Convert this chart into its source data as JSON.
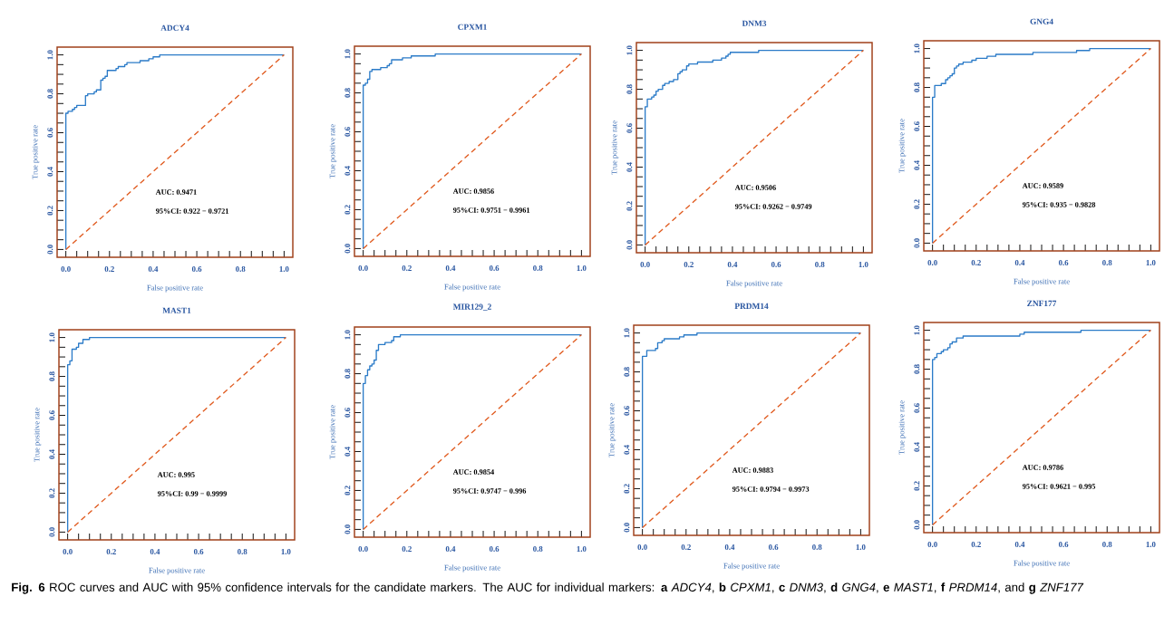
{
  "chart_data": [
    {
      "type": "step",
      "title": "ADCY4",
      "xlabel": "False positive rate",
      "ylabel": "True positive rate",
      "xlim": [
        -0.04,
        1.04
      ],
      "ylim": [
        -0.04,
        1.04
      ],
      "xticks": [
        {
          "value": 0,
          "label": "0.0"
        },
        {
          "value": 0.05,
          "label": null
        },
        {
          "value": 0.1,
          "label": null
        },
        {
          "value": 0.15,
          "label": null
        },
        {
          "value": 0.2,
          "label": "0.2"
        },
        {
          "value": 0.25,
          "label": null
        },
        {
          "value": 0.3,
          "label": null
        },
        {
          "value": 0.35,
          "label": null
        },
        {
          "value": 0.4,
          "label": "0.4"
        },
        {
          "value": 0.45,
          "label": null
        },
        {
          "value": 0.5,
          "label": null
        },
        {
          "value": 0.55,
          "label": null
        },
        {
          "value": 0.6,
          "label": "0.6"
        },
        {
          "value": 0.65,
          "label": null
        },
        {
          "value": 0.7,
          "label": null
        },
        {
          "value": 0.75,
          "label": null
        },
        {
          "value": 0.8,
          "label": "0.8"
        },
        {
          "value": 0.85,
          "label": null
        },
        {
          "value": 0.9,
          "label": null
        },
        {
          "value": 0.95,
          "label": null
        },
        {
          "value": 1,
          "label": "1.0"
        }
      ],
      "yticks": [
        {
          "value": 0,
          "label": "0.0"
        },
        {
          "value": 0.05,
          "label": null
        },
        {
          "value": 0.1,
          "label": null
        },
        {
          "value": 0.15,
          "label": null
        },
        {
          "value": 0.2,
          "label": "0.2"
        },
        {
          "value": 0.25,
          "label": null
        },
        {
          "value": 0.3,
          "label": null
        },
        {
          "value": 0.35,
          "label": null
        },
        {
          "value": 0.4,
          "label": "0.4"
        },
        {
          "value": 0.45,
          "label": null
        },
        {
          "value": 0.5,
          "label": null
        },
        {
          "value": 0.55,
          "label": null
        },
        {
          "value": 0.6,
          "label": "0.6"
        },
        {
          "value": 0.65,
          "label": null
        },
        {
          "value": 0.7,
          "label": null
        },
        {
          "value": 0.75,
          "label": null
        },
        {
          "value": 0.8,
          "label": "0.8"
        },
        {
          "value": 0.85,
          "label": null
        },
        {
          "value": 0.9,
          "label": null
        },
        {
          "value": 0.95,
          "label": null
        },
        {
          "value": 1,
          "label": "1.0"
        }
      ],
      "annotations": [
        "AUC: 0.9471",
        "95%CI: 0.922 − 0.9721"
      ],
      "series": [
        {
          "type": "step",
          "color": "#2b7bc8",
          "x": [
            0,
            0,
            0.01,
            0.03,
            0.04,
            0.05,
            0.09,
            0.1,
            0.13,
            0.14,
            0.16,
            0.17,
            0.18,
            0.19,
            0.23,
            0.24,
            0.27,
            0.28,
            0.34,
            0.38,
            0.4,
            0.43,
            1
          ],
          "values": [
            0,
            0.7,
            0.71,
            0.72,
            0.73,
            0.74,
            0.79,
            0.8,
            0.81,
            0.82,
            0.87,
            0.88,
            0.89,
            0.92,
            0.93,
            0.94,
            0.95,
            0.96,
            0.97,
            0.98,
            0.99,
            1,
            1
          ]
        },
        {
          "type": "line",
          "color": "#e05a1e",
          "line_style": "dashed",
          "x": [
            0,
            1
          ],
          "values": [
            0,
            1
          ]
        }
      ]
    },
    {
      "type": "step",
      "title": "CPXM1",
      "xlabel": "False positive rate",
      "ylabel": "True positive rate",
      "xlim": [
        -0.04,
        1.04
      ],
      "ylim": [
        -0.04,
        1.04
      ],
      "xticks": [
        {
          "value": 0,
          "label": "0.0"
        },
        {
          "value": 0.05,
          "label": null
        },
        {
          "value": 0.1,
          "label": null
        },
        {
          "value": 0.15,
          "label": null
        },
        {
          "value": 0.2,
          "label": "0.2"
        },
        {
          "value": 0.25,
          "label": null
        },
        {
          "value": 0.3,
          "label": null
        },
        {
          "value": 0.35,
          "label": null
        },
        {
          "value": 0.4,
          "label": "0.4"
        },
        {
          "value": 0.45,
          "label": null
        },
        {
          "value": 0.5,
          "label": null
        },
        {
          "value": 0.55,
          "label": null
        },
        {
          "value": 0.6,
          "label": "0.6"
        },
        {
          "value": 0.65,
          "label": null
        },
        {
          "value": 0.7,
          "label": null
        },
        {
          "value": 0.75,
          "label": null
        },
        {
          "value": 0.8,
          "label": "0.8"
        },
        {
          "value": 0.85,
          "label": null
        },
        {
          "value": 0.9,
          "label": null
        },
        {
          "value": 0.95,
          "label": null
        },
        {
          "value": 1,
          "label": "1.0"
        }
      ],
      "yticks": [
        {
          "value": 0,
          "label": "0.0"
        },
        {
          "value": 0.05,
          "label": null
        },
        {
          "value": 0.1,
          "label": null
        },
        {
          "value": 0.15,
          "label": null
        },
        {
          "value": 0.2,
          "label": "0.2"
        },
        {
          "value": 0.25,
          "label": null
        },
        {
          "value": 0.3,
          "label": null
        },
        {
          "value": 0.35,
          "label": null
        },
        {
          "value": 0.4,
          "label": "0.4"
        },
        {
          "value": 0.45,
          "label": null
        },
        {
          "value": 0.5,
          "label": null
        },
        {
          "value": 0.55,
          "label": null
        },
        {
          "value": 0.6,
          "label": "0.6"
        },
        {
          "value": 0.65,
          "label": null
        },
        {
          "value": 0.7,
          "label": null
        },
        {
          "value": 0.75,
          "label": null
        },
        {
          "value": 0.8,
          "label": "0.8"
        },
        {
          "value": 0.85,
          "label": null
        },
        {
          "value": 0.9,
          "label": null
        },
        {
          "value": 0.95,
          "label": null
        },
        {
          "value": 1,
          "label": "1.0"
        }
      ],
      "annotations": [
        "AUC: 0.9856",
        "95%CI: 0.9751 − 0.9961"
      ],
      "series": [
        {
          "type": "step",
          "color": "#2b7bc8",
          "x": [
            0,
            0,
            0.01,
            0.02,
            0.03,
            0.04,
            0.08,
            0.11,
            0.12,
            0.13,
            0.18,
            0.22,
            0.33,
            1
          ],
          "values": [
            0,
            0.84,
            0.85,
            0.87,
            0.91,
            0.92,
            0.93,
            0.94,
            0.95,
            0.97,
            0.98,
            0.99,
            1,
            1
          ]
        },
        {
          "type": "line",
          "color": "#e05a1e",
          "line_style": "dashed",
          "x": [
            0,
            1
          ],
          "values": [
            0,
            1
          ]
        }
      ]
    },
    {
      "type": "step",
      "title": "DNM3",
      "xlabel": "False positive rate",
      "ylabel": "True positive rate",
      "xlim": [
        -0.04,
        1.04
      ],
      "ylim": [
        -0.04,
        1.04
      ],
      "xticks": [
        {
          "value": 0,
          "label": "0.0"
        },
        {
          "value": 0.05,
          "label": null
        },
        {
          "value": 0.1,
          "label": null
        },
        {
          "value": 0.15,
          "label": null
        },
        {
          "value": 0.2,
          "label": "0.2"
        },
        {
          "value": 0.25,
          "label": null
        },
        {
          "value": 0.3,
          "label": null
        },
        {
          "value": 0.35,
          "label": null
        },
        {
          "value": 0.4,
          "label": "0.4"
        },
        {
          "value": 0.45,
          "label": null
        },
        {
          "value": 0.5,
          "label": null
        },
        {
          "value": 0.55,
          "label": null
        },
        {
          "value": 0.6,
          "label": "0.6"
        },
        {
          "value": 0.65,
          "label": null
        },
        {
          "value": 0.7,
          "label": null
        },
        {
          "value": 0.75,
          "label": null
        },
        {
          "value": 0.8,
          "label": "0.8"
        },
        {
          "value": 0.85,
          "label": null
        },
        {
          "value": 0.9,
          "label": null
        },
        {
          "value": 0.95,
          "label": null
        },
        {
          "value": 1,
          "label": "1.0"
        }
      ],
      "yticks": [
        {
          "value": 0,
          "label": "0.0"
        },
        {
          "value": 0.05,
          "label": null
        },
        {
          "value": 0.1,
          "label": null
        },
        {
          "value": 0.15,
          "label": null
        },
        {
          "value": 0.2,
          "label": "0.2"
        },
        {
          "value": 0.25,
          "label": null
        },
        {
          "value": 0.3,
          "label": null
        },
        {
          "value": 0.35,
          "label": null
        },
        {
          "value": 0.4,
          "label": "0.4"
        },
        {
          "value": 0.45,
          "label": null
        },
        {
          "value": 0.5,
          "label": null
        },
        {
          "value": 0.55,
          "label": null
        },
        {
          "value": 0.6,
          "label": "0.6"
        },
        {
          "value": 0.65,
          "label": null
        },
        {
          "value": 0.7,
          "label": null
        },
        {
          "value": 0.75,
          "label": null
        },
        {
          "value": 0.8,
          "label": "0.8"
        },
        {
          "value": 0.85,
          "label": null
        },
        {
          "value": 0.9,
          "label": null
        },
        {
          "value": 0.95,
          "label": null
        },
        {
          "value": 1,
          "label": "1.0"
        }
      ],
      "annotations": [
        "AUC: 0.9506",
        "95%CI: 0.9262 − 0.9749"
      ],
      "series": [
        {
          "type": "step",
          "color": "#2b7bc8",
          "x": [
            0,
            0,
            0.01,
            0.03,
            0.04,
            0.05,
            0.06,
            0.08,
            0.09,
            0.11,
            0.13,
            0.15,
            0.16,
            0.17,
            0.19,
            0.2,
            0.24,
            0.31,
            0.35,
            0.37,
            0.38,
            0.39,
            0.52,
            1
          ],
          "values": [
            0,
            0.71,
            0.75,
            0.76,
            0.77,
            0.79,
            0.8,
            0.82,
            0.83,
            0.84,
            0.85,
            0.88,
            0.89,
            0.9,
            0.92,
            0.93,
            0.94,
            0.95,
            0.96,
            0.97,
            0.98,
            0.99,
            1,
            1
          ]
        },
        {
          "type": "line",
          "color": "#e05a1e",
          "line_style": "dashed",
          "x": [
            0,
            1
          ],
          "values": [
            0,
            1
          ]
        }
      ]
    },
    {
      "type": "step",
      "title": "GNG4",
      "xlabel": "False positive rate",
      "ylabel": "True positive rate",
      "xlim": [
        -0.04,
        1.04
      ],
      "ylim": [
        -0.04,
        1.04
      ],
      "xticks": [
        {
          "value": 0,
          "label": "0.0"
        },
        {
          "value": 0.05,
          "label": null
        },
        {
          "value": 0.1,
          "label": null
        },
        {
          "value": 0.15,
          "label": null
        },
        {
          "value": 0.2,
          "label": "0.2"
        },
        {
          "value": 0.25,
          "label": null
        },
        {
          "value": 0.3,
          "label": null
        },
        {
          "value": 0.35,
          "label": null
        },
        {
          "value": 0.4,
          "label": "0.4"
        },
        {
          "value": 0.45,
          "label": null
        },
        {
          "value": 0.5,
          "label": null
        },
        {
          "value": 0.55,
          "label": null
        },
        {
          "value": 0.6,
          "label": "0.6"
        },
        {
          "value": 0.65,
          "label": null
        },
        {
          "value": 0.7,
          "label": null
        },
        {
          "value": 0.75,
          "label": null
        },
        {
          "value": 0.8,
          "label": "0.8"
        },
        {
          "value": 0.85,
          "label": null
        },
        {
          "value": 0.9,
          "label": null
        },
        {
          "value": 0.95,
          "label": null
        },
        {
          "value": 1,
          "label": "1.0"
        }
      ],
      "yticks": [
        {
          "value": 0,
          "label": "0.0"
        },
        {
          "value": 0.05,
          "label": null
        },
        {
          "value": 0.1,
          "label": null
        },
        {
          "value": 0.15,
          "label": null
        },
        {
          "value": 0.2,
          "label": "0.2"
        },
        {
          "value": 0.25,
          "label": null
        },
        {
          "value": 0.3,
          "label": null
        },
        {
          "value": 0.35,
          "label": null
        },
        {
          "value": 0.4,
          "label": "0.4"
        },
        {
          "value": 0.45,
          "label": null
        },
        {
          "value": 0.5,
          "label": null
        },
        {
          "value": 0.55,
          "label": null
        },
        {
          "value": 0.6,
          "label": "0.6"
        },
        {
          "value": 0.65,
          "label": null
        },
        {
          "value": 0.7,
          "label": null
        },
        {
          "value": 0.75,
          "label": null
        },
        {
          "value": 0.8,
          "label": "0.8"
        },
        {
          "value": 0.85,
          "label": null
        },
        {
          "value": 0.9,
          "label": null
        },
        {
          "value": 0.95,
          "label": null
        },
        {
          "value": 1,
          "label": "1.0"
        }
      ],
      "annotations": [
        "AUC: 0.9589",
        "95%CI: 0.935 − 0.9828"
      ],
      "series": [
        {
          "type": "step",
          "color": "#2b7bc8",
          "x": [
            0,
            0,
            0.01,
            0.04,
            0.06,
            0.07,
            0.08,
            0.09,
            0.1,
            0.11,
            0.12,
            0.14,
            0.18,
            0.2,
            0.25,
            0.29,
            0.46,
            0.66,
            0.72,
            1
          ],
          "values": [
            0,
            0.75,
            0.81,
            0.82,
            0.84,
            0.85,
            0.86,
            0.87,
            0.9,
            0.91,
            0.92,
            0.93,
            0.94,
            0.95,
            0.96,
            0.97,
            0.98,
            0.99,
            1,
            1
          ]
        },
        {
          "type": "line",
          "color": "#e05a1e",
          "line_style": "dashed",
          "x": [
            0,
            1
          ],
          "values": [
            0,
            1
          ]
        }
      ]
    },
    {
      "type": "step",
      "title": "MAST1",
      "xlabel": "False positive rate",
      "ylabel": "True positive rate",
      "xlim": [
        -0.04,
        1.04
      ],
      "ylim": [
        -0.04,
        1.04
      ],
      "xticks": [
        {
          "value": 0,
          "label": "0.0"
        },
        {
          "value": 0.05,
          "label": null
        },
        {
          "value": 0.1,
          "label": null
        },
        {
          "value": 0.15,
          "label": null
        },
        {
          "value": 0.2,
          "label": "0.2"
        },
        {
          "value": 0.25,
          "label": null
        },
        {
          "value": 0.3,
          "label": null
        },
        {
          "value": 0.35,
          "label": null
        },
        {
          "value": 0.4,
          "label": "0.4"
        },
        {
          "value": 0.45,
          "label": null
        },
        {
          "value": 0.5,
          "label": null
        },
        {
          "value": 0.55,
          "label": null
        },
        {
          "value": 0.6,
          "label": "0.6"
        },
        {
          "value": 0.65,
          "label": null
        },
        {
          "value": 0.7,
          "label": null
        },
        {
          "value": 0.75,
          "label": null
        },
        {
          "value": 0.8,
          "label": "0.8"
        },
        {
          "value": 0.85,
          "label": null
        },
        {
          "value": 0.9,
          "label": null
        },
        {
          "value": 0.95,
          "label": null
        },
        {
          "value": 1,
          "label": "1.0"
        }
      ],
      "yticks": [
        {
          "value": 0,
          "label": "0.0"
        },
        {
          "value": 0.05,
          "label": null
        },
        {
          "value": 0.1,
          "label": null
        },
        {
          "value": 0.15,
          "label": null
        },
        {
          "value": 0.2,
          "label": "0.2"
        },
        {
          "value": 0.25,
          "label": null
        },
        {
          "value": 0.3,
          "label": null
        },
        {
          "value": 0.35,
          "label": null
        },
        {
          "value": 0.4,
          "label": "0.4"
        },
        {
          "value": 0.45,
          "label": null
        },
        {
          "value": 0.5,
          "label": null
        },
        {
          "value": 0.55,
          "label": null
        },
        {
          "value": 0.6,
          "label": "0.6"
        },
        {
          "value": 0.65,
          "label": null
        },
        {
          "value": 0.7,
          "label": null
        },
        {
          "value": 0.75,
          "label": null
        },
        {
          "value": 0.8,
          "label": "0.8"
        },
        {
          "value": 0.85,
          "label": null
        },
        {
          "value": 0.9,
          "label": null
        },
        {
          "value": 0.95,
          "label": null
        },
        {
          "value": 1,
          "label": "1.0"
        }
      ],
      "annotations": [
        "AUC: 0.995",
        "95%CI: 0.99 − 0.9999"
      ],
      "series": [
        {
          "type": "step",
          "color": "#2b7bc8",
          "x": [
            0,
            0,
            0.01,
            0.02,
            0.04,
            0.05,
            0.07,
            0.1,
            1
          ],
          "values": [
            0,
            0.86,
            0.88,
            0.94,
            0.95,
            0.97,
            0.99,
            1,
            1
          ]
        },
        {
          "type": "line",
          "color": "#e05a1e",
          "line_style": "dashed",
          "x": [
            0,
            1
          ],
          "values": [
            0,
            1
          ]
        }
      ]
    },
    {
      "type": "step",
      "title": "MIR129_2",
      "xlabel": "False positive rate",
      "ylabel": "True positive rate",
      "xlim": [
        -0.04,
        1.04
      ],
      "ylim": [
        -0.04,
        1.04
      ],
      "xticks": [
        {
          "value": 0,
          "label": "0.0"
        },
        {
          "value": 0.05,
          "label": null
        },
        {
          "value": 0.1,
          "label": null
        },
        {
          "value": 0.15,
          "label": null
        },
        {
          "value": 0.2,
          "label": "0.2"
        },
        {
          "value": 0.25,
          "label": null
        },
        {
          "value": 0.3,
          "label": null
        },
        {
          "value": 0.35,
          "label": null
        },
        {
          "value": 0.4,
          "label": "0.4"
        },
        {
          "value": 0.45,
          "label": null
        },
        {
          "value": 0.5,
          "label": null
        },
        {
          "value": 0.55,
          "label": null
        },
        {
          "value": 0.6,
          "label": "0.6"
        },
        {
          "value": 0.65,
          "label": null
        },
        {
          "value": 0.7,
          "label": null
        },
        {
          "value": 0.75,
          "label": null
        },
        {
          "value": 0.8,
          "label": "0.8"
        },
        {
          "value": 0.85,
          "label": null
        },
        {
          "value": 0.9,
          "label": null
        },
        {
          "value": 0.95,
          "label": null
        },
        {
          "value": 1,
          "label": "1.0"
        }
      ],
      "yticks": [
        {
          "value": 0,
          "label": "0.0"
        },
        {
          "value": 0.05,
          "label": null
        },
        {
          "value": 0.1,
          "label": null
        },
        {
          "value": 0.15,
          "label": null
        },
        {
          "value": 0.2,
          "label": "0.2"
        },
        {
          "value": 0.25,
          "label": null
        },
        {
          "value": 0.3,
          "label": null
        },
        {
          "value": 0.35,
          "label": null
        },
        {
          "value": 0.4,
          "label": "0.4"
        },
        {
          "value": 0.45,
          "label": null
        },
        {
          "value": 0.5,
          "label": null
        },
        {
          "value": 0.55,
          "label": null
        },
        {
          "value": 0.6,
          "label": "0.6"
        },
        {
          "value": 0.65,
          "label": null
        },
        {
          "value": 0.7,
          "label": null
        },
        {
          "value": 0.75,
          "label": null
        },
        {
          "value": 0.8,
          "label": "0.8"
        },
        {
          "value": 0.85,
          "label": null
        },
        {
          "value": 0.9,
          "label": null
        },
        {
          "value": 0.95,
          "label": null
        },
        {
          "value": 1,
          "label": "1.0"
        }
      ],
      "annotations": [
        "AUC: 0.9854",
        "95%CI: 0.9747 − 0.996"
      ],
      "series": [
        {
          "type": "step",
          "color": "#2b7bc8",
          "x": [
            0,
            0,
            0.01,
            0.02,
            0.03,
            0.04,
            0.05,
            0.06,
            0.07,
            0.1,
            0.13,
            0.14,
            0.17,
            1
          ],
          "values": [
            0,
            0.75,
            0.79,
            0.82,
            0.84,
            0.85,
            0.87,
            0.92,
            0.95,
            0.96,
            0.97,
            0.99,
            1,
            1
          ]
        },
        {
          "type": "line",
          "color": "#e05a1e",
          "line_style": "dashed",
          "x": [
            0,
            1
          ],
          "values": [
            0,
            1
          ]
        }
      ]
    },
    {
      "type": "step",
      "title": "PRDM14",
      "xlabel": "False positive rate",
      "ylabel": "True positive rate",
      "xlim": [
        -0.04,
        1.04
      ],
      "ylim": [
        -0.04,
        1.04
      ],
      "xticks": [
        {
          "value": 0,
          "label": "0.0"
        },
        {
          "value": 0.05,
          "label": null
        },
        {
          "value": 0.1,
          "label": null
        },
        {
          "value": 0.15,
          "label": null
        },
        {
          "value": 0.2,
          "label": "0.2"
        },
        {
          "value": 0.25,
          "label": null
        },
        {
          "value": 0.3,
          "label": null
        },
        {
          "value": 0.35,
          "label": null
        },
        {
          "value": 0.4,
          "label": "0.4"
        },
        {
          "value": 0.45,
          "label": null
        },
        {
          "value": 0.5,
          "label": null
        },
        {
          "value": 0.55,
          "label": null
        },
        {
          "value": 0.6,
          "label": "0.6"
        },
        {
          "value": 0.65,
          "label": null
        },
        {
          "value": 0.7,
          "label": null
        },
        {
          "value": 0.75,
          "label": null
        },
        {
          "value": 0.8,
          "label": "0.8"
        },
        {
          "value": 0.85,
          "label": null
        },
        {
          "value": 0.9,
          "label": null
        },
        {
          "value": 0.95,
          "label": null
        },
        {
          "value": 1,
          "label": "1.0"
        }
      ],
      "yticks": [
        {
          "value": 0,
          "label": "0.0"
        },
        {
          "value": 0.05,
          "label": null
        },
        {
          "value": 0.1,
          "label": null
        },
        {
          "value": 0.15,
          "label": null
        },
        {
          "value": 0.2,
          "label": "0.2"
        },
        {
          "value": 0.25,
          "label": null
        },
        {
          "value": 0.3,
          "label": null
        },
        {
          "value": 0.35,
          "label": null
        },
        {
          "value": 0.4,
          "label": "0.4"
        },
        {
          "value": 0.45,
          "label": null
        },
        {
          "value": 0.5,
          "label": null
        },
        {
          "value": 0.55,
          "label": null
        },
        {
          "value": 0.6,
          "label": "0.6"
        },
        {
          "value": 0.65,
          "label": null
        },
        {
          "value": 0.7,
          "label": null
        },
        {
          "value": 0.75,
          "label": null
        },
        {
          "value": 0.8,
          "label": "0.8"
        },
        {
          "value": 0.85,
          "label": null
        },
        {
          "value": 0.9,
          "label": null
        },
        {
          "value": 0.95,
          "label": null
        },
        {
          "value": 1,
          "label": "1.0"
        }
      ],
      "annotations": [
        "AUC: 0.9883",
        "95%CI: 0.9794 − 0.9973"
      ],
      "series": [
        {
          "type": "step",
          "color": "#2b7bc8",
          "x": [
            0,
            0,
            0.02,
            0.06,
            0.07,
            0.09,
            0.1,
            0.17,
            0.19,
            0.25,
            1
          ],
          "values": [
            0,
            0.88,
            0.91,
            0.92,
            0.95,
            0.96,
            0.97,
            0.98,
            0.99,
            1,
            1
          ]
        },
        {
          "type": "line",
          "color": "#e05a1e",
          "line_style": "dashed",
          "x": [
            0,
            1
          ],
          "values": [
            0,
            1
          ]
        }
      ]
    },
    {
      "type": "step",
      "title": "ZNF177",
      "xlabel": "False positive rate",
      "ylabel": "True positive rate",
      "xlim": [
        -0.04,
        1.04
      ],
      "ylim": [
        -0.04,
        1.04
      ],
      "xticks": [
        {
          "value": 0,
          "label": "0.0"
        },
        {
          "value": 0.05,
          "label": null
        },
        {
          "value": 0.1,
          "label": null
        },
        {
          "value": 0.15,
          "label": null
        },
        {
          "value": 0.2,
          "label": "0.2"
        },
        {
          "value": 0.25,
          "label": null
        },
        {
          "value": 0.3,
          "label": null
        },
        {
          "value": 0.35,
          "label": null
        },
        {
          "value": 0.4,
          "label": "0.4"
        },
        {
          "value": 0.45,
          "label": null
        },
        {
          "value": 0.5,
          "label": null
        },
        {
          "value": 0.55,
          "label": null
        },
        {
          "value": 0.6,
          "label": "0.6"
        },
        {
          "value": 0.65,
          "label": null
        },
        {
          "value": 0.7,
          "label": null
        },
        {
          "value": 0.75,
          "label": null
        },
        {
          "value": 0.8,
          "label": "0.8"
        },
        {
          "value": 0.85,
          "label": null
        },
        {
          "value": 0.9,
          "label": null
        },
        {
          "value": 0.95,
          "label": null
        },
        {
          "value": 1,
          "label": "1.0"
        }
      ],
      "yticks": [
        {
          "value": 0,
          "label": "0.0"
        },
        {
          "value": 0.05,
          "label": null
        },
        {
          "value": 0.1,
          "label": null
        },
        {
          "value": 0.15,
          "label": null
        },
        {
          "value": 0.2,
          "label": "0.2"
        },
        {
          "value": 0.25,
          "label": null
        },
        {
          "value": 0.3,
          "label": null
        },
        {
          "value": 0.35,
          "label": null
        },
        {
          "value": 0.4,
          "label": "0.4"
        },
        {
          "value": 0.45,
          "label": null
        },
        {
          "value": 0.5,
          "label": null
        },
        {
          "value": 0.55,
          "label": null
        },
        {
          "value": 0.6,
          "label": "0.6"
        },
        {
          "value": 0.65,
          "label": null
        },
        {
          "value": 0.7,
          "label": null
        },
        {
          "value": 0.75,
          "label": null
        },
        {
          "value": 0.8,
          "label": "0.8"
        },
        {
          "value": 0.85,
          "label": null
        },
        {
          "value": 0.9,
          "label": null
        },
        {
          "value": 0.95,
          "label": null
        },
        {
          "value": 1,
          "label": "1.0"
        }
      ],
      "annotations": [
        "AUC: 0.9786",
        "95%CI: 0.9621 − 0.995"
      ],
      "series": [
        {
          "type": "step",
          "color": "#2b7bc8",
          "x": [
            0,
            0,
            0.01,
            0.02,
            0.04,
            0.05,
            0.07,
            0.08,
            0.09,
            0.11,
            0.14,
            0.4,
            0.42,
            0.68,
            1
          ],
          "values": [
            0,
            0.85,
            0.86,
            0.88,
            0.89,
            0.9,
            0.91,
            0.93,
            0.94,
            0.96,
            0.97,
            0.98,
            0.99,
            1,
            1
          ]
        },
        {
          "type": "line",
          "color": "#e05a1e",
          "line_style": "dashed",
          "x": [
            0,
            1
          ],
          "values": [
            0,
            1
          ]
        }
      ]
    },
    {
      "type": "other",
      "annotations": [
        "**Fig. 6** ROC curves and AUC with 95% confidence intervals for the candidate markers. The AUC for individual markers: **a** *ADCY4*, **b** *CPXM1*, **c** *DNM3*, **d** *GNG4*, **e** *MAST1*, **f** *PRDM14*, and **g** *ZNF177*"
      ]
    }
  ]
}
